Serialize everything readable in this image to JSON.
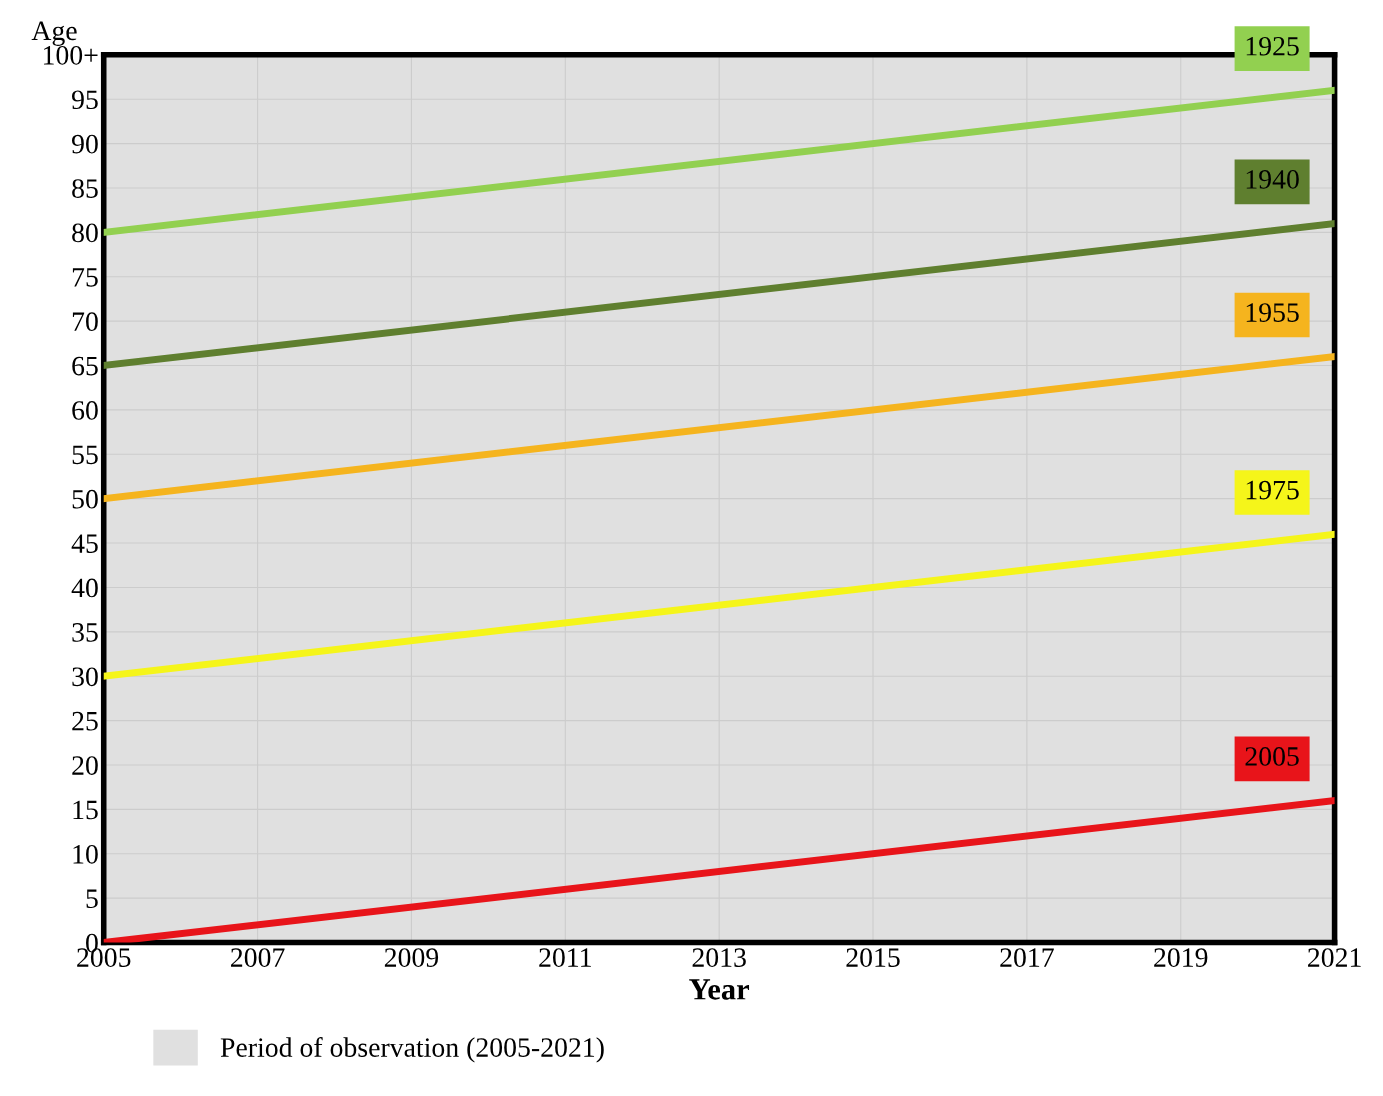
{
  "chart_data": {
    "type": "line",
    "xlabel": "Year",
    "ylabel": "Age",
    "x": [
      2005,
      2021
    ],
    "series": [
      {
        "name": "1925",
        "color": "#92d050",
        "values": [
          80,
          96
        ]
      },
      {
        "name": "1940",
        "color": "#5f7f2f",
        "values": [
          65,
          81
        ]
      },
      {
        "name": "1955",
        "color": "#f5b41e",
        "values": [
          50,
          66
        ]
      },
      {
        "name": "1975",
        "color": "#f5f51a",
        "values": [
          30,
          46
        ]
      },
      {
        "name": "2005",
        "color": "#e8141a",
        "values": [
          0,
          16
        ]
      }
    ],
    "xlim": [
      2005,
      2021
    ],
    "xticks": [
      2005,
      2007,
      2009,
      2011,
      2013,
      2015,
      2017,
      2019,
      2021
    ],
    "ylim": [
      0,
      100
    ],
    "yticks": [
      0,
      5,
      10,
      15,
      20,
      25,
      30,
      35,
      40,
      45,
      50,
      55,
      60,
      65,
      70,
      75,
      80,
      85,
      90,
      95,
      {
        "value": 100,
        "label": "100+"
      }
    ],
    "bands": [
      {
        "axis": "x",
        "from": 2005,
        "to": 2021,
        "label": "Period of observation (2005-2021)",
        "color": "#e0e0e0"
      }
    ],
    "grid": true,
    "legend": "bottom",
    "marker": "none",
    "line_style": "solid"
  }
}
